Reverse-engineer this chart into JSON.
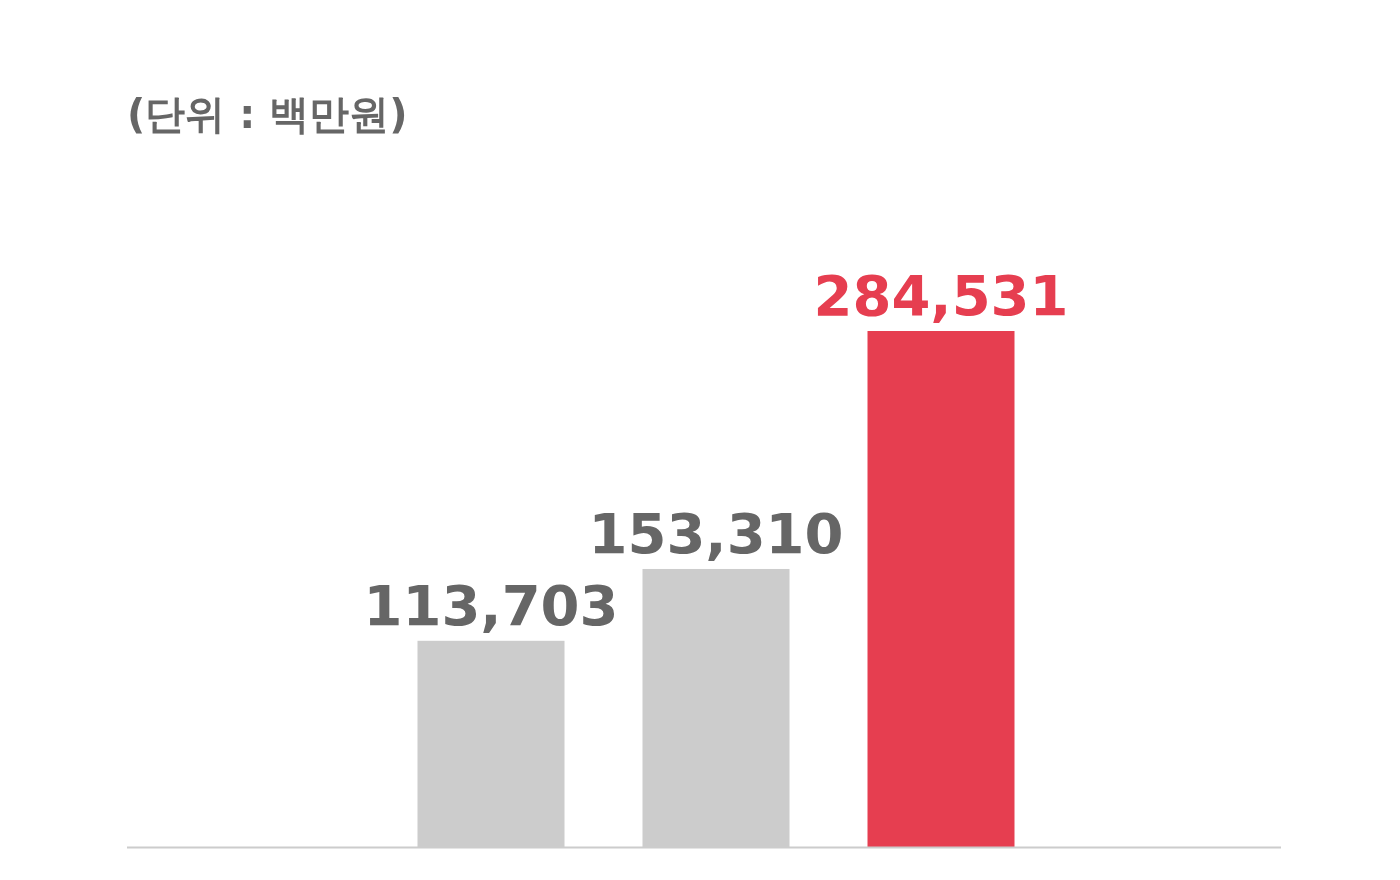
{
  "chart_data": {
    "type": "bar",
    "title": "(단위 : 백만원)",
    "categories": [
      null,
      null,
      null
    ],
    "values": [
      113703,
      153310,
      284531
    ],
    "colors": [
      "#cccccc",
      "#cccccc",
      "#e63e50"
    ],
    "value_labels": [
      "113,703",
      "153,310",
      "284,531"
    ]
  }
}
